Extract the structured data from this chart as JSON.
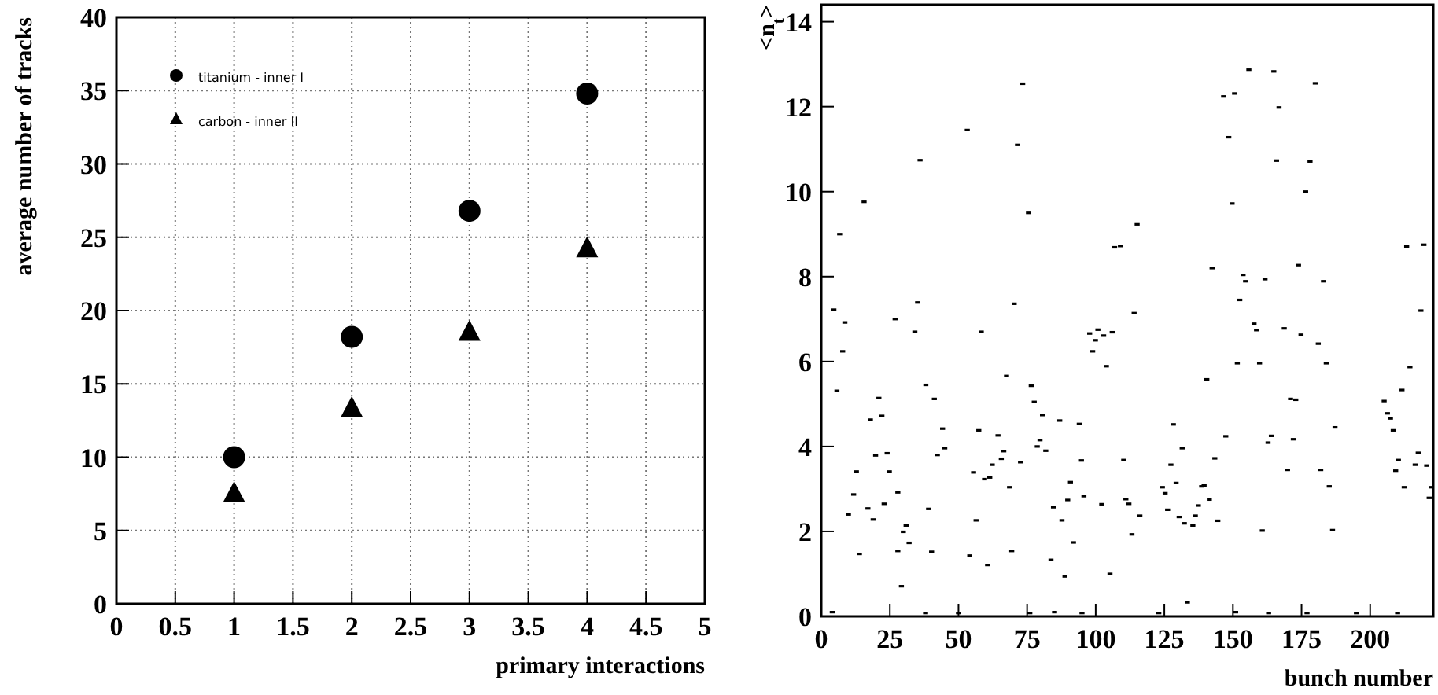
{
  "chart_data": [
    {
      "type": "scatter",
      "xlabel": "primary interactions",
      "ylabel": "average number of tracks",
      "xlim": [
        0,
        5
      ],
      "ylim": [
        0,
        40
      ],
      "xticks": [
        0,
        0.5,
        1,
        1.5,
        2,
        2.5,
        3,
        3.5,
        4,
        4.5,
        5
      ],
      "yticks": [
        0,
        5,
        10,
        15,
        20,
        25,
        30,
        35,
        40
      ],
      "grid": true,
      "legend": "top left",
      "series": [
        {
          "name": "titanium - inner I",
          "color": "#000000",
          "marker": "circle",
          "x": [
            1,
            2,
            3,
            4
          ],
          "values": [
            10,
            18.2,
            26.8,
            34.8
          ]
        },
        {
          "name": "carbon - inner II",
          "color": "#000000",
          "marker": "triangle",
          "x": [
            1,
            2,
            3,
            4
          ],
          "values": [
            7.5,
            13.3,
            18.5,
            24.2
          ]
        }
      ]
    },
    {
      "type": "scatter",
      "xlabel": "bunch number",
      "ylabel": "<n$_{t}$>",
      "xlim": [
        0,
        223
      ],
      "ylim": [
        0,
        14.4
      ],
      "xticks": [
        0,
        25,
        50,
        75,
        100,
        125,
        150,
        175,
        200
      ],
      "yticks": [
        0,
        2,
        4,
        6,
        8,
        10,
        12,
        14
      ],
      "grid": false,
      "marker": "square",
      "series": [
        {
          "color": "#000000",
          "x": [
            73.4,
            53.2,
            71.5,
            36.0,
            15.6,
            75.5,
            6.7,
            4.6,
            8.6,
            26.9,
            35.1,
            34.1,
            58.3,
            70.3,
            155.8,
            164.9,
            180.0,
            146.6,
            150.6,
            166.8,
            148.5,
            165.9,
            178.1,
            176.5,
            149.7,
            115.1,
            106.9,
            109.0,
            213.3,
            219.6,
            142.4,
            173.9,
            153.7,
            154.6,
            161.7,
            183.0,
            152.5,
            114.0,
            218.5,
            157.7,
            168.7,
            174.8,
            181.1,
            158.6,
            97.8,
            100.8,
            102.9,
            106.0,
            99.9,
            7.8,
            5.7,
            21.0,
            17.9,
            22.1,
            38.1,
            41.2,
            44.2,
            19.8,
            24.0,
            12.8,
            24.8,
            42.3,
            45.0,
            11.8,
            27.9,
            9.9,
            17.0,
            22.9,
            18.9,
            39.1,
            30.9,
            29.9,
            32.0,
            13.9,
            27.9,
            40.2,
            29.2,
            67.5,
            76.5,
            77.6,
            80.6,
            86.9,
            94.0,
            57.4,
            64.4,
            79.7,
            78.7,
            66.5,
            81.8,
            65.6,
            72.6,
            94.8,
            62.3,
            55.5,
            59.5,
            61.4,
            90.8,
            68.6,
            95.7,
            89.8,
            84.6,
            56.4,
            87.7,
            91.9,
            69.4,
            83.7,
            54.1,
            60.6,
            88.8,
            98.9,
            103.9,
            102.2,
            105.2,
            110.2,
            111.0,
            112.1,
            116.1,
            113.2,
            124.3,
            125.3,
            128.3,
            131.5,
            127.4,
            129.3,
            126.2,
            130.4,
            132.3,
            135.4,
            136.3,
            137.4,
            138.6,
            139.5,
            141.4,
            140.5,
            143.4,
            144.5,
            147.4,
            151.6,
            159.7,
            184.0,
            171.0,
            172.9,
            162.8,
            164.0,
            172.0,
            187.2,
            169.9,
            182.0,
            185.1,
            160.7,
            186.3,
            205.1,
            206.3,
            207.4,
            208.4,
            211.6,
            214.5,
            210.3,
            209.3,
            212.4,
            216.4,
            217.5,
            220.6,
            221.5,
            222.3,
            133.4,
            4,
            38,
            50,
            76,
            85,
            95,
            123,
            151,
            163,
            177,
            195,
            210
          ],
          "values": [
            12.54,
            11.45,
            11.1,
            10.74,
            9.76,
            9.5,
            9.0,
            7.22,
            6.92,
            7.0,
            7.39,
            6.7,
            6.7,
            7.36,
            12.87,
            12.83,
            12.55,
            12.24,
            12.31,
            11.98,
            11.28,
            10.73,
            10.71,
            10.0,
            9.72,
            9.23,
            8.69,
            8.72,
            8.71,
            8.75,
            8.2,
            8.27,
            8.04,
            7.89,
            7.94,
            7.89,
            7.45,
            7.14,
            7.2,
            6.89,
            6.78,
            6.63,
            6.42,
            6.74,
            6.66,
            6.75,
            6.61,
            6.69,
            6.5,
            6.24,
            5.31,
            5.14,
            4.63,
            4.72,
            5.45,
            5.12,
            4.42,
            3.79,
            3.84,
            3.41,
            3.41,
            3.8,
            3.96,
            2.87,
            2.92,
            2.4,
            2.54,
            2.65,
            2.28,
            2.53,
            2.14,
            1.99,
            1.73,
            1.47,
            1.54,
            1.52,
            0.71,
            5.66,
            5.43,
            5.05,
            4.74,
            4.61,
            4.53,
            4.38,
            4.26,
            4.15,
            4.0,
            3.89,
            3.9,
            3.71,
            3.63,
            3.67,
            3.57,
            3.39,
            3.23,
            3.27,
            3.16,
            3.04,
            2.83,
            2.74,
            2.57,
            2.26,
            2.26,
            1.74,
            1.54,
            1.33,
            1.43,
            1.21,
            0.94,
            6.24,
            5.89,
            2.64,
            1.0,
            3.68,
            2.76,
            2.65,
            2.37,
            1.93,
            3.04,
            2.9,
            4.52,
            3.96,
            3.57,
            3.14,
            2.51,
            2.34,
            2.19,
            2.14,
            2.37,
            2.61,
            3.06,
            3.08,
            2.75,
            5.58,
            3.72,
            2.25,
            4.24,
            5.96,
            5.96,
            5.96,
            5.12,
            5.1,
            4.09,
            4.25,
            4.17,
            4.45,
            3.45,
            3.45,
            3.06,
            2.02,
            2.03,
            5.07,
            4.78,
            4.66,
            4.38,
            5.33,
            5.87,
            3.68,
            3.43,
            3.04,
            3.57,
            3.85,
            3.55,
            2.79,
            3.04,
            0.33,
            0.1,
            0.08,
            0.08,
            0.08,
            0.1,
            0.08,
            0.08,
            0.1,
            0.08,
            0.08,
            0.08,
            0.08
          ]
        }
      ]
    }
  ]
}
